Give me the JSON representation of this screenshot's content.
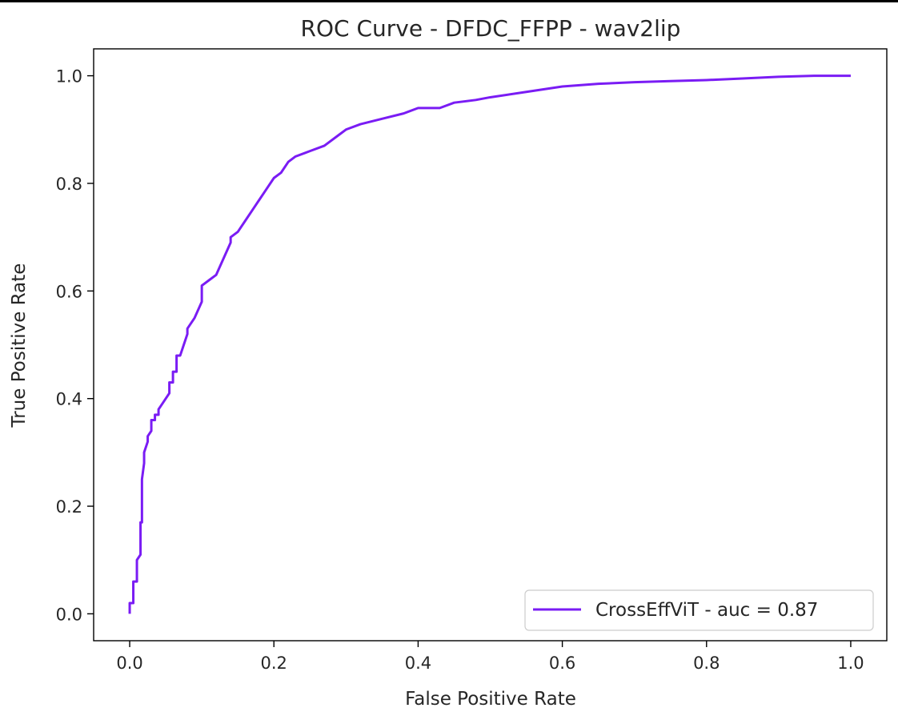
{
  "chart_data": {
    "type": "line",
    "title": "ROC Curve - DFDC_FFPP - wav2lip",
    "xlabel": "False Positive Rate",
    "ylabel": "True Positive Rate",
    "xlim": [
      -0.05,
      1.05
    ],
    "ylim": [
      -0.05,
      1.05
    ],
    "xticks": [
      "0.0",
      "0.2",
      "0.4",
      "0.6",
      "0.8",
      "1.0"
    ],
    "yticks": [
      "0.0",
      "0.2",
      "0.4",
      "0.6",
      "0.8",
      "1.0"
    ],
    "grid": false,
    "legend_position": "lower right",
    "series": [
      {
        "name": "CrossEffViT - auc = 0.87",
        "color": "#7a1cf4",
        "x": [
          0.0,
          0.0,
          0.005,
          0.005,
          0.01,
          0.01,
          0.015,
          0.015,
          0.017,
          0.017,
          0.02,
          0.02,
          0.025,
          0.025,
          0.03,
          0.03,
          0.035,
          0.035,
          0.04,
          0.04,
          0.045,
          0.05,
          0.055,
          0.055,
          0.06,
          0.06,
          0.065,
          0.065,
          0.07,
          0.075,
          0.08,
          0.08,
          0.09,
          0.1,
          0.1,
          0.11,
          0.12,
          0.13,
          0.14,
          0.14,
          0.15,
          0.16,
          0.17,
          0.18,
          0.19,
          0.2,
          0.21,
          0.22,
          0.23,
          0.25,
          0.27,
          0.29,
          0.3,
          0.32,
          0.35,
          0.38,
          0.4,
          0.43,
          0.45,
          0.48,
          0.5,
          0.55,
          0.6,
          0.65,
          0.7,
          0.75,
          0.8,
          0.85,
          0.9,
          0.95,
          1.0
        ],
        "y": [
          0.0,
          0.02,
          0.02,
          0.06,
          0.06,
          0.1,
          0.11,
          0.17,
          0.17,
          0.25,
          0.28,
          0.3,
          0.32,
          0.33,
          0.34,
          0.36,
          0.36,
          0.37,
          0.37,
          0.38,
          0.39,
          0.4,
          0.41,
          0.43,
          0.43,
          0.45,
          0.45,
          0.48,
          0.48,
          0.5,
          0.52,
          0.53,
          0.55,
          0.58,
          0.61,
          0.62,
          0.63,
          0.66,
          0.69,
          0.7,
          0.71,
          0.73,
          0.75,
          0.77,
          0.79,
          0.81,
          0.82,
          0.84,
          0.85,
          0.86,
          0.87,
          0.89,
          0.9,
          0.91,
          0.92,
          0.93,
          0.94,
          0.94,
          0.95,
          0.955,
          0.96,
          0.97,
          0.98,
          0.985,
          0.988,
          0.99,
          0.992,
          0.995,
          0.998,
          1.0,
          1.0
        ]
      }
    ]
  }
}
